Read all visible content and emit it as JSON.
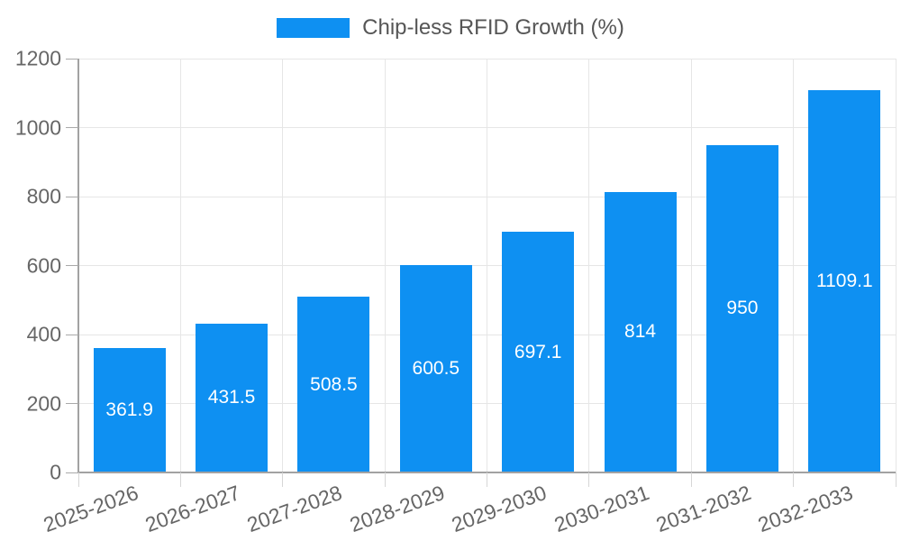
{
  "chart_data": {
    "type": "bar",
    "title": "Chip-less RFID Growth (%)",
    "legend": {
      "position": "top",
      "label": "Chip-less RFID Growth (%)"
    },
    "categories": [
      "2025-2026",
      "2026-2027",
      "2027-2028",
      "2028-2029",
      "2029-2030",
      "2030-2031",
      "2031-2032",
      "2032-2033"
    ],
    "values": [
      361.9,
      431.5,
      508.5,
      600.5,
      697.1,
      814,
      950,
      1109.1
    ],
    "bar_labels": [
      "361.9",
      "431.5",
      "508.5",
      "600.5",
      "697.1",
      "814",
      "950",
      "1109.1"
    ],
    "xlabel": "",
    "ylabel": "",
    "ylim": [
      0,
      1200
    ],
    "yticks": [
      0,
      200,
      400,
      600,
      800,
      1000,
      1200
    ],
    "ytick_labels": [
      "0",
      "200",
      "400",
      "600",
      "800",
      "1000",
      "1200"
    ],
    "grid": "both",
    "x_label_rotation_deg": -20,
    "colors": {
      "bar": "#0e90f2",
      "bar_label": "#ffffff",
      "grid": "#e6e6e6",
      "axis": "#a2a2a2",
      "x_tick": "#d6d6d6",
      "y_tick": "#a9a9a9",
      "axis_text": "#666666",
      "legend_text": "#565656",
      "background": "#ffffff"
    }
  }
}
